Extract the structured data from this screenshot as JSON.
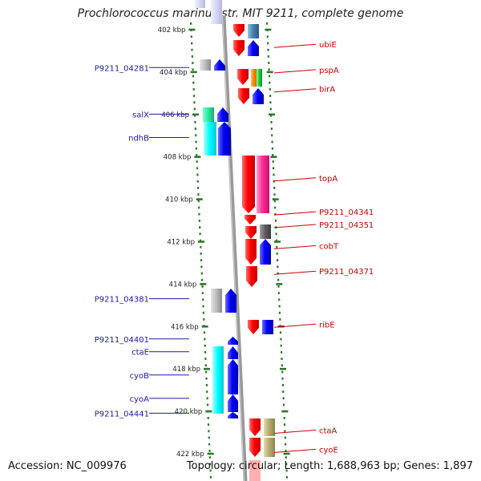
{
  "title": "Prochlorococcus marinus str. MIT 9211, complete genome",
  "footer": {
    "accession": "Accession: NC_009976",
    "stats": "Topology: circular; Length: 1,688,963 bp; Genes: 1,897"
  },
  "colors": {
    "reverse_label": "#1a1aa8",
    "forward_label": "#cc0000",
    "backbone": "#999999",
    "tick": "#2a7a2a"
  },
  "axis": {
    "ticks": [
      {
        "kbp": 402,
        "label": "402 kbp"
      },
      {
        "kbp": 404,
        "label": "404 kbp"
      },
      {
        "kbp": 406,
        "label": "406 kbp"
      },
      {
        "kbp": 408,
        "label": "408 kbp"
      },
      {
        "kbp": 410,
        "label": "410 kbp"
      },
      {
        "kbp": 412,
        "label": "412 kbp"
      },
      {
        "kbp": 414,
        "label": "414 kbp"
      },
      {
        "kbp": 416,
        "label": "416 kbp"
      },
      {
        "kbp": 418,
        "label": "418 kbp"
      },
      {
        "kbp": 420,
        "label": "420 kbp"
      },
      {
        "kbp": 422,
        "label": "422 kbp"
      }
    ]
  },
  "labels": {
    "reverse": [
      {
        "text": "P9211_04281",
        "kbp": 403.9
      },
      {
        "text": "salX",
        "kbp": 406.1
      },
      {
        "text": "ndhB",
        "kbp": 407.2
      },
      {
        "text": "P9211_04381",
        "kbp": 414.8
      },
      {
        "text": "P9211_04401",
        "kbp": 416.7
      },
      {
        "text": "ctaE",
        "kbp": 417.3
      },
      {
        "text": "cyoB",
        "kbp": 418.4
      },
      {
        "text": "cyoA",
        "kbp": 419.5
      },
      {
        "text": "P9211_04441",
        "kbp": 420.2
      }
    ],
    "forward": [
      {
        "text": "ubiE",
        "kbp": 402.8
      },
      {
        "text": "pspA",
        "kbp": 404.0
      },
      {
        "text": "birA",
        "kbp": 404.9
      },
      {
        "text": "topA",
        "kbp": 409.1
      },
      {
        "text": "P9211_04341",
        "kbp": 410.7
      },
      {
        "text": "P9211_04351",
        "kbp": 411.3
      },
      {
        "text": "cobT",
        "kbp": 412.3
      },
      {
        "text": "P9211_04371",
        "kbp": 413.5
      },
      {
        "text": "ribE",
        "kbp": 416.0
      },
      {
        "text": "ctaA",
        "kbp": 421.0
      },
      {
        "text": "cyoE",
        "kbp": 421.9
      }
    ]
  }
}
